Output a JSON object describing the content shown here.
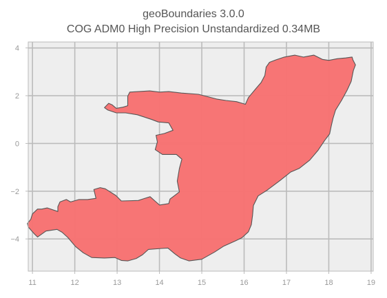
{
  "title": "geoBoundaries 3.0.0",
  "subtitle": "COG ADM0 High Precision Unstandardized 0.34MB",
  "chart_data": {
    "type": "map",
    "title": "geoBoundaries 3.0.0",
    "subtitle": "COG ADM0 High Precision Unstandardized 0.34MB",
    "xlim": [
      10.9,
      19.05
    ],
    "ylim": [
      -5.35,
      4.25
    ],
    "x_ticks": [
      11,
      12,
      13,
      14,
      15,
      16,
      17,
      18,
      19
    ],
    "y_ticks": [
      -4,
      -2,
      0,
      2,
      4
    ],
    "x_tick_labels": [
      "11",
      "12",
      "13",
      "14",
      "15",
      "16",
      "17",
      "18",
      "19"
    ],
    "y_tick_labels": [
      "−4",
      "−2",
      "0",
      "2",
      "4"
    ],
    "grid": true,
    "background_color": "#eeeeee",
    "grid_color": "#bbbbbb",
    "fill_color": "#f77272",
    "edge_color": "#555555",
    "outline": [
      [
        11.12,
        -3.92
      ],
      [
        11.32,
        -3.67
      ],
      [
        11.58,
        -3.6
      ],
      [
        11.7,
        -3.72
      ],
      [
        11.84,
        -3.95
      ],
      [
        11.96,
        -4.2
      ],
      [
        12.02,
        -4.32
      ],
      [
        12.2,
        -4.58
      ],
      [
        12.4,
        -4.78
      ],
      [
        12.7,
        -4.8
      ],
      [
        12.95,
        -4.78
      ],
      [
        13.1,
        -4.9
      ],
      [
        13.25,
        -4.92
      ],
      [
        13.45,
        -4.82
      ],
      [
        13.6,
        -4.66
      ],
      [
        13.74,
        -4.44
      ],
      [
        14.05,
        -4.4
      ],
      [
        14.2,
        -4.38
      ],
      [
        14.36,
        -4.62
      ],
      [
        14.5,
        -4.8
      ],
      [
        14.7,
        -4.92
      ],
      [
        15.0,
        -4.85
      ],
      [
        15.3,
        -4.55
      ],
      [
        15.52,
        -4.3
      ],
      [
        15.8,
        -4.08
      ],
      [
        15.95,
        -3.95
      ],
      [
        16.1,
        -3.7
      ],
      [
        16.17,
        -3.4
      ],
      [
        16.2,
        -3.0
      ],
      [
        16.22,
        -2.6
      ],
      [
        16.33,
        -2.2
      ],
      [
        16.55,
        -1.95
      ],
      [
        16.85,
        -1.55
      ],
      [
        17.1,
        -1.2
      ],
      [
        17.3,
        -1.05
      ],
      [
        17.55,
        -0.7
      ],
      [
        17.75,
        -0.28
      ],
      [
        17.9,
        0.12
      ],
      [
        18.02,
        0.4
      ],
      [
        18.06,
        0.74
      ],
      [
        18.1,
        1.05
      ],
      [
        18.16,
        1.4
      ],
      [
        18.3,
        1.8
      ],
      [
        18.43,
        2.22
      ],
      [
        18.53,
        2.6
      ],
      [
        18.58,
        3.05
      ],
      [
        18.63,
        3.29
      ],
      [
        18.57,
        3.5
      ],
      [
        18.55,
        3.62
      ],
      [
        18.4,
        3.58
      ],
      [
        18.2,
        3.55
      ],
      [
        18.0,
        3.48
      ],
      [
        17.85,
        3.52
      ],
      [
        17.65,
        3.7
      ],
      [
        17.4,
        3.62
      ],
      [
        17.2,
        3.7
      ],
      [
        16.95,
        3.62
      ],
      [
        16.75,
        3.5
      ],
      [
        16.6,
        3.4
      ],
      [
        16.52,
        3.2
      ],
      [
        16.49,
        2.85
      ],
      [
        16.4,
        2.55
      ],
      [
        16.28,
        2.3
      ],
      [
        16.1,
        1.92
      ],
      [
        16.03,
        1.64
      ],
      [
        15.82,
        1.75
      ],
      [
        15.57,
        1.8
      ],
      [
        15.35,
        1.86
      ],
      [
        15.18,
        1.94
      ],
      [
        14.92,
        2.06
      ],
      [
        14.52,
        2.11
      ],
      [
        14.22,
        2.17
      ],
      [
        14.0,
        2.15
      ],
      [
        13.77,
        2.2
      ],
      [
        13.3,
        2.15
      ],
      [
        13.25,
        1.98
      ],
      [
        13.25,
        1.58
      ],
      [
        13.14,
        1.52
      ],
      [
        12.98,
        1.47
      ],
      [
        12.88,
        1.62
      ],
      [
        12.8,
        1.68
      ],
      [
        12.7,
        1.5
      ],
      [
        12.78,
        1.4
      ],
      [
        12.98,
        1.28
      ],
      [
        13.2,
        1.28
      ],
      [
        13.48,
        1.2
      ],
      [
        13.82,
        1.0
      ],
      [
        13.97,
        0.9
      ],
      [
        14.22,
        0.86
      ],
      [
        14.32,
        0.55
      ],
      [
        14.12,
        0.42
      ],
      [
        13.92,
        0.34
      ],
      [
        13.95,
        0.06
      ],
      [
        13.9,
        -0.26
      ],
      [
        14.07,
        -0.46
      ],
      [
        14.4,
        -0.46
      ],
      [
        14.53,
        -0.66
      ],
      [
        14.47,
        -1.05
      ],
      [
        14.42,
        -1.58
      ],
      [
        14.47,
        -2.03
      ],
      [
        14.25,
        -2.33
      ],
      [
        14.22,
        -2.52
      ],
      [
        14.0,
        -2.58
      ],
      [
        13.9,
        -2.42
      ],
      [
        13.78,
        -2.23
      ],
      [
        13.62,
        -2.32
      ],
      [
        13.5,
        -2.39
      ],
      [
        13.1,
        -2.41
      ],
      [
        12.97,
        -2.18
      ],
      [
        12.72,
        -1.9
      ],
      [
        12.6,
        -1.85
      ],
      [
        12.45,
        -1.93
      ],
      [
        12.5,
        -2.3
      ],
      [
        12.3,
        -2.35
      ],
      [
        12.1,
        -2.35
      ],
      [
        11.9,
        -2.45
      ],
      [
        11.8,
        -2.35
      ],
      [
        11.65,
        -2.45
      ],
      [
        11.6,
        -2.65
      ],
      [
        11.6,
        -2.85
      ],
      [
        11.35,
        -2.7
      ],
      [
        11.22,
        -2.75
      ],
      [
        11.12,
        -2.75
      ],
      [
        11.0,
        -2.95
      ],
      [
        10.96,
        -3.18
      ],
      [
        10.88,
        -3.35
      ],
      [
        10.9,
        -3.5
      ],
      [
        11.05,
        -3.8
      ]
    ]
  }
}
